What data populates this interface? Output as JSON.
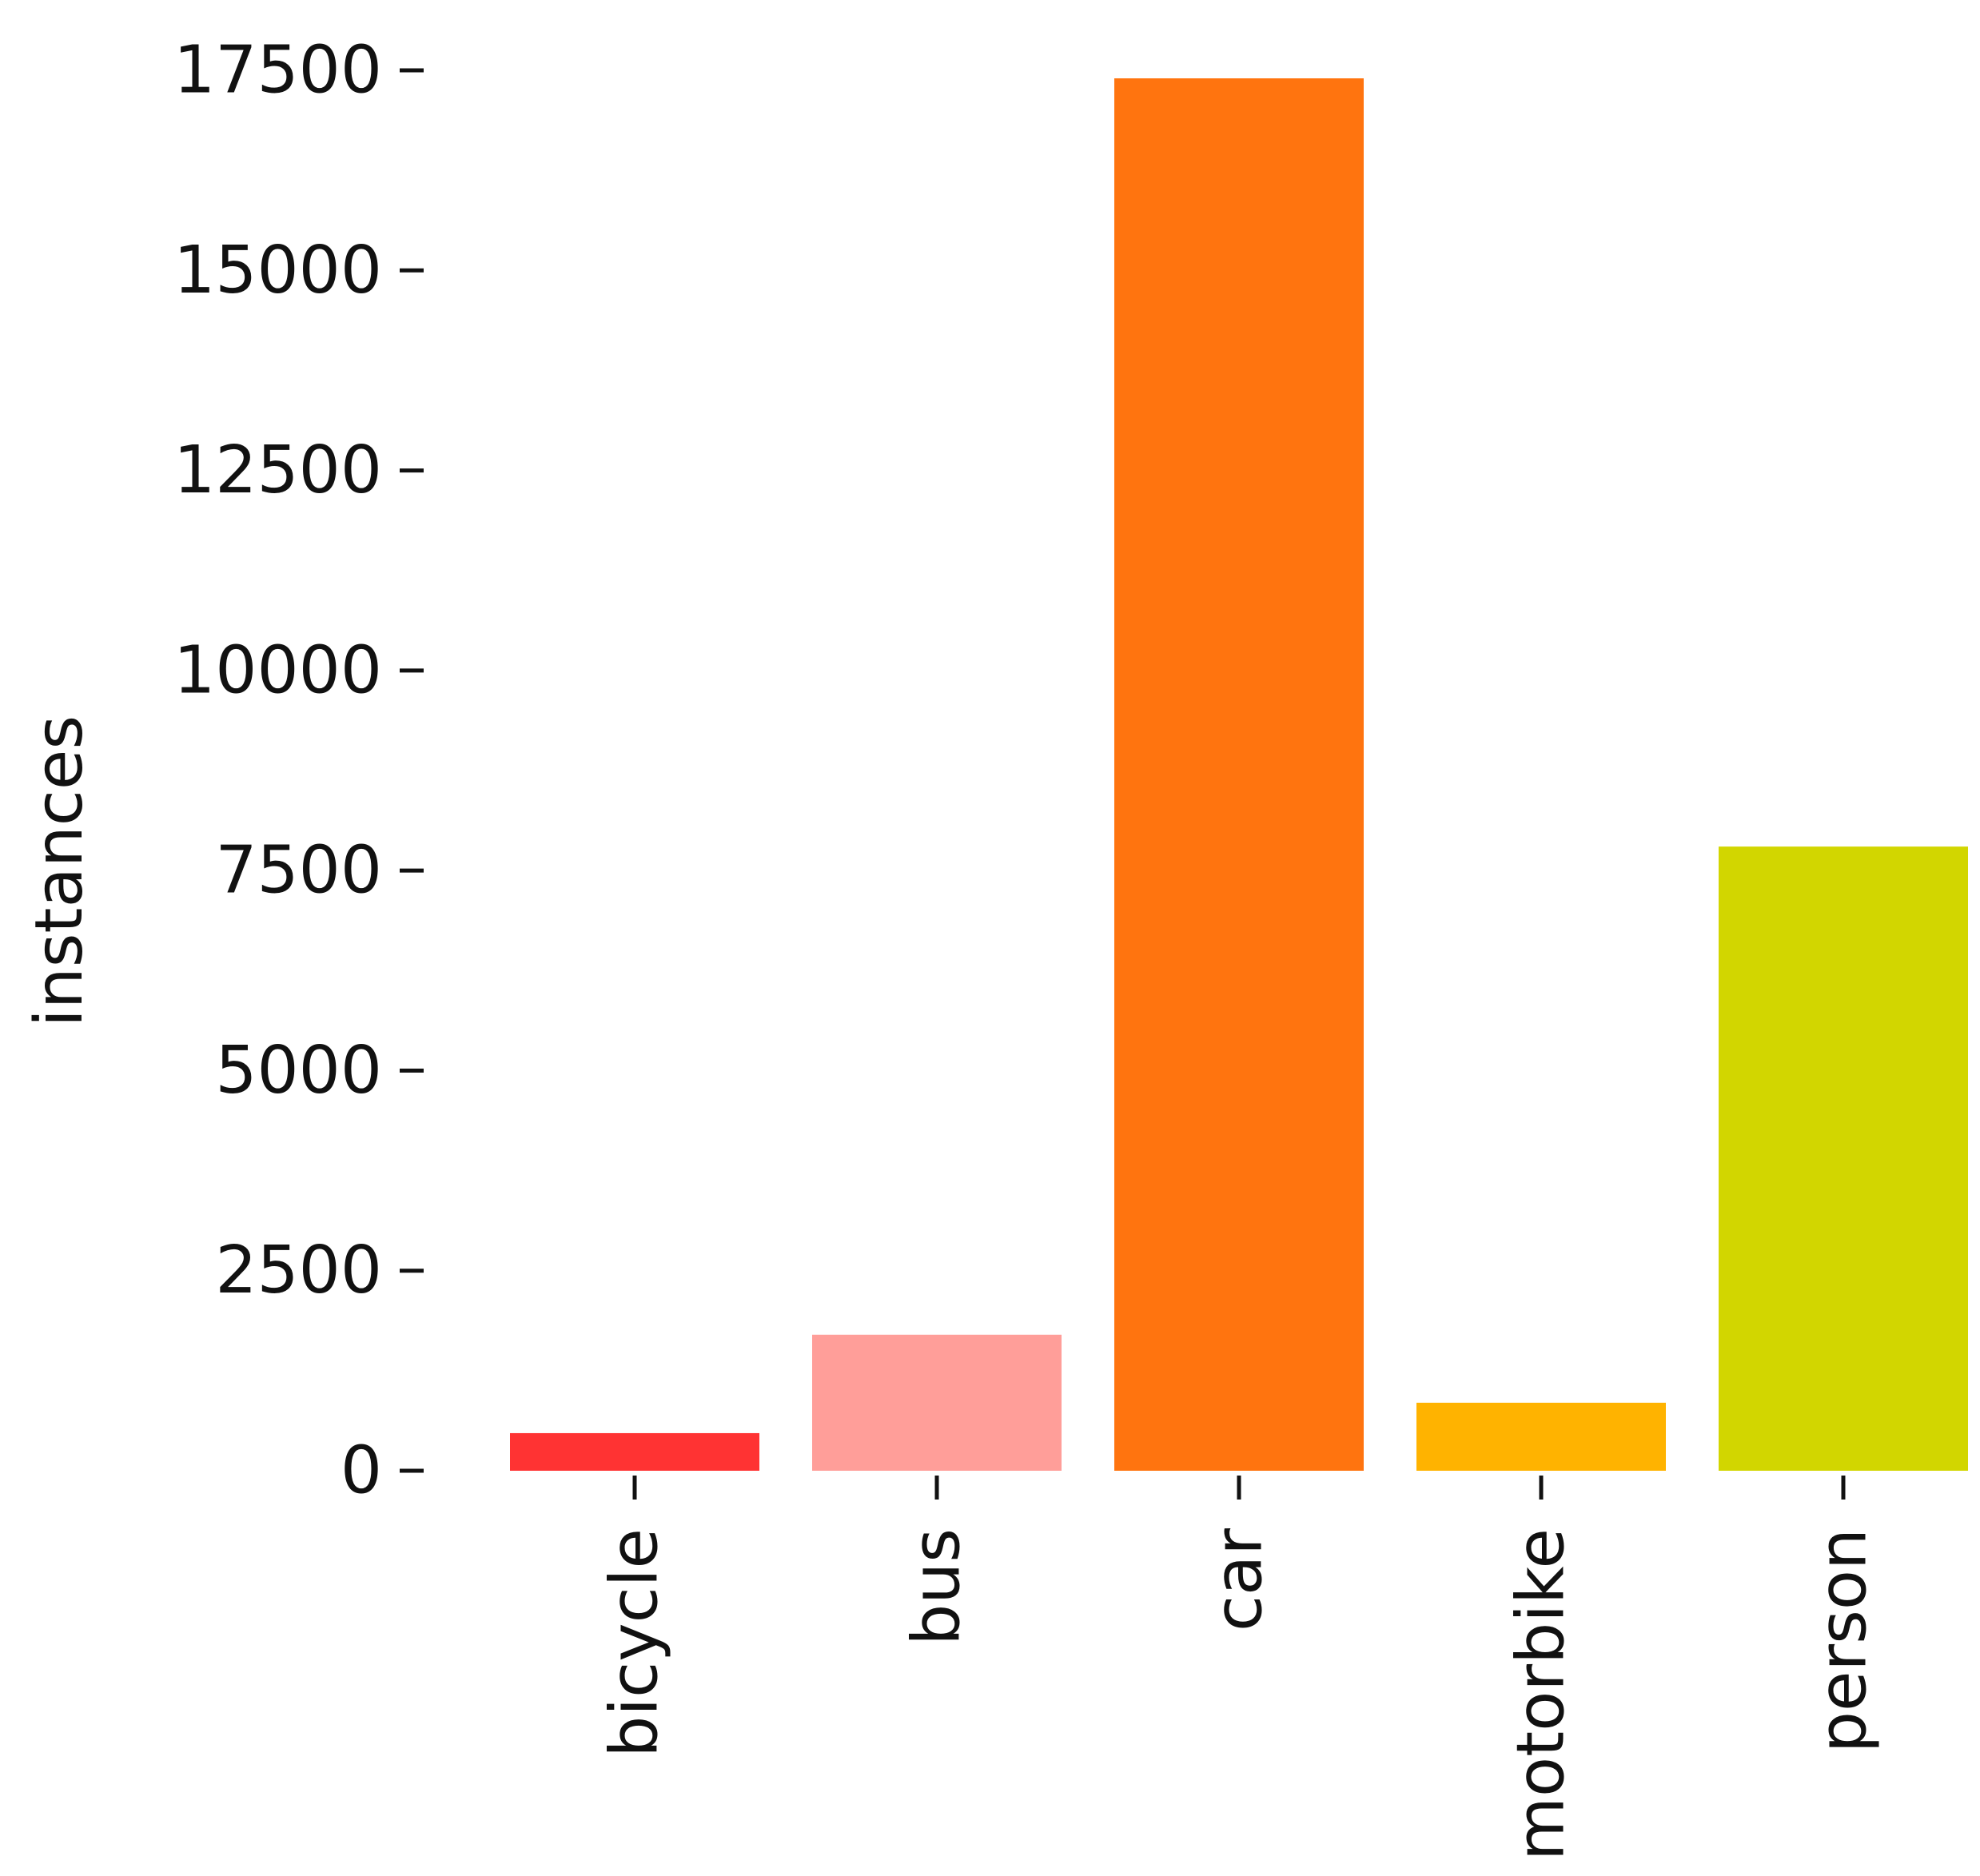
{
  "chart_data": {
    "type": "bar",
    "categories": [
      "bicycle",
      "bus",
      "car",
      "motorbike",
      "person"
    ],
    "values": [
      470,
      1700,
      17400,
      850,
      7800
    ],
    "colors": [
      "#ff3333",
      "#ff9e99",
      "#ff740f",
      "#ffb300",
      "#d2d600"
    ],
    "title": "",
    "xlabel": "",
    "ylabel": "instances",
    "ylim": [
      0,
      17500
    ],
    "yticks": [
      0,
      2500,
      5000,
      7500,
      10000,
      12500,
      15000,
      17500
    ],
    "ytick_labels": [
      "0",
      "2500",
      "5000",
      "7500",
      "10000",
      "12500",
      "15000",
      "17500"
    ],
    "grid": false,
    "legend": "none"
  }
}
